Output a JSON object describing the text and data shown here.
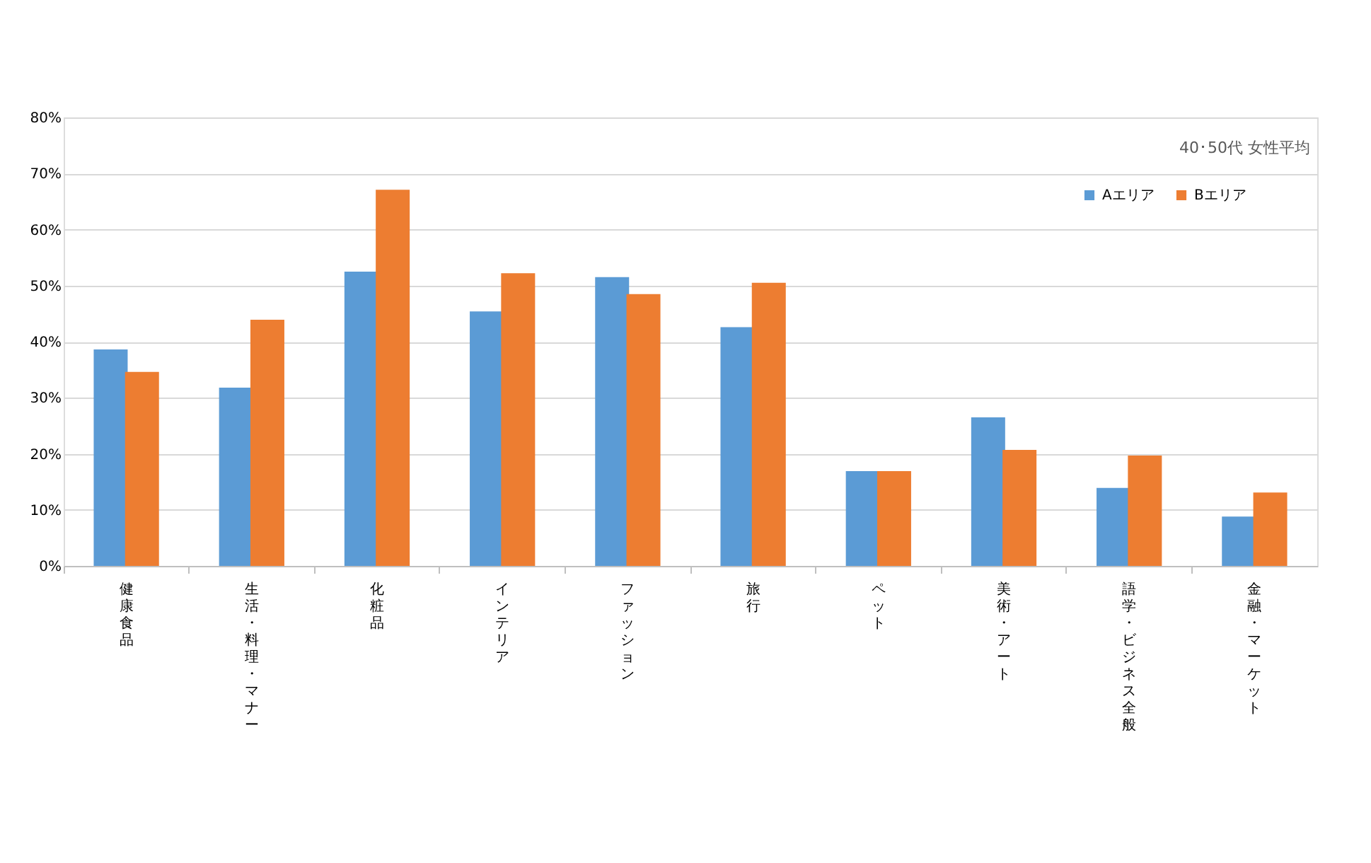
{
  "chart_data": {
    "type": "bar",
    "categories": [
      "健康食品",
      "生活・料理・マナー",
      "化粧品",
      "インテリア",
      "ファッション",
      "旅行",
      "ペット",
      "美術・アート",
      "語学・ビジネス全般",
      "金融・マーケット"
    ],
    "series": [
      {
        "name": "Aエリア",
        "color": "#5b9bd5",
        "values": [
          38.6,
          31.8,
          52.5,
          45.4,
          51.5,
          42.6,
          16.9,
          26.5,
          13.9,
          8.8
        ]
      },
      {
        "name": "Bエリア",
        "color": "#ed7d31",
        "values": [
          34.6,
          43.9,
          67.1,
          52.2,
          48.5,
          50.5,
          16.9,
          20.7,
          19.7,
          13.1
        ]
      }
    ],
    "ylim": [
      0,
      80
    ],
    "yticks": [
      {
        "value": 0,
        "label": "0%"
      },
      {
        "value": 10,
        "label": "10%"
      },
      {
        "value": 20,
        "label": "20%"
      },
      {
        "value": 30,
        "label": "30%"
      },
      {
        "value": 40,
        "label": "40%"
      },
      {
        "value": 50,
        "label": "50%"
      },
      {
        "value": 60,
        "label": "60%"
      },
      {
        "value": 70,
        "label": "70%"
      },
      {
        "value": 80,
        "label": "80%"
      }
    ],
    "grid": "y",
    "legend": "top right",
    "annotations": [
      "40･50代 女性平均"
    ]
  }
}
